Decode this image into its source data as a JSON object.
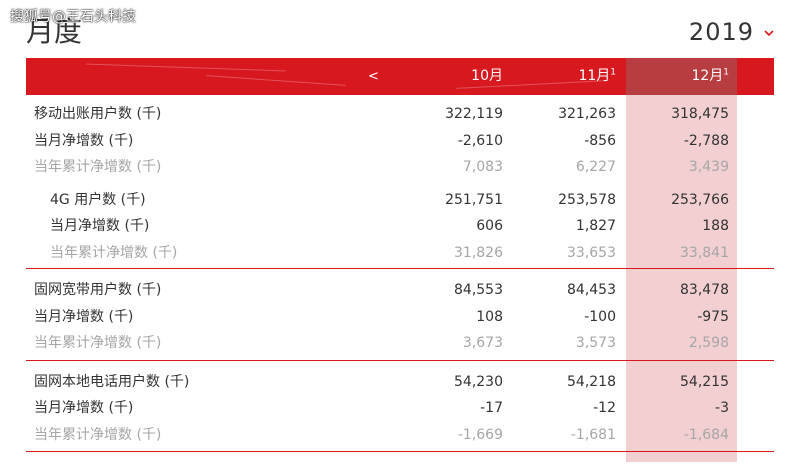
{
  "watermark": "搜狐号@王石头科技",
  "page_title": "月度",
  "year_selector": {
    "value": "2019",
    "icon": "chevron-down-icon"
  },
  "table": {
    "prev_label": "<",
    "columns": [
      {
        "label": "10月",
        "sup": ""
      },
      {
        "label": "11月",
        "sup": "1"
      },
      {
        "label": "12月",
        "sup": "1"
      }
    ],
    "sections": [
      {
        "rows": [
          {
            "label": "移动出账用户数 (千)",
            "values": [
              "322,119",
              "321,263",
              "318,475"
            ],
            "style": "normal"
          },
          {
            "label": "当月净增数 (千)",
            "values": [
              "-2,610",
              "-856",
              "-2,788"
            ],
            "style": "normal"
          },
          {
            "label": "当年累计净增数 (千)",
            "values": [
              "7,083",
              "6,227",
              "3,439"
            ],
            "style": "muted"
          }
        ],
        "subrows": [
          {
            "label": "4G 用户数 (千)",
            "values": [
              "251,751",
              "253,578",
              "253,766"
            ],
            "style": "normal"
          },
          {
            "label": "当月净增数 (千)",
            "values": [
              "606",
              "1,827",
              "188"
            ],
            "style": "normal"
          },
          {
            "label": "当年累计净增数 (千)",
            "values": [
              "31,826",
              "33,653",
              "33,841"
            ],
            "style": "muted"
          }
        ]
      },
      {
        "rows": [
          {
            "label": "固网宽带用户数 (千)",
            "values": [
              "84,553",
              "84,453",
              "83,478"
            ],
            "style": "normal"
          },
          {
            "label": "当月净增数 (千)",
            "values": [
              "108",
              "-100",
              "-975"
            ],
            "style": "normal"
          },
          {
            "label": "当年累计净增数 (千)",
            "values": [
              "3,673",
              "3,573",
              "2,598"
            ],
            "style": "muted"
          }
        ]
      },
      {
        "rows": [
          {
            "label": "固网本地电话用户数 (千)",
            "values": [
              "54,230",
              "54,218",
              "54,215"
            ],
            "style": "normal"
          },
          {
            "label": "当月净增数 (千)",
            "values": [
              "-17",
              "-12",
              "-3"
            ],
            "style": "normal"
          },
          {
            "label": "当年累计净增数 (千)",
            "values": [
              "-1,669",
              "-1,681",
              "-1,684"
            ],
            "style": "muted"
          }
        ]
      }
    ]
  },
  "colors": {
    "header_red": "#d8181f",
    "highlight_column": "#f2cfd0",
    "muted_text": "#a6a6a6"
  }
}
